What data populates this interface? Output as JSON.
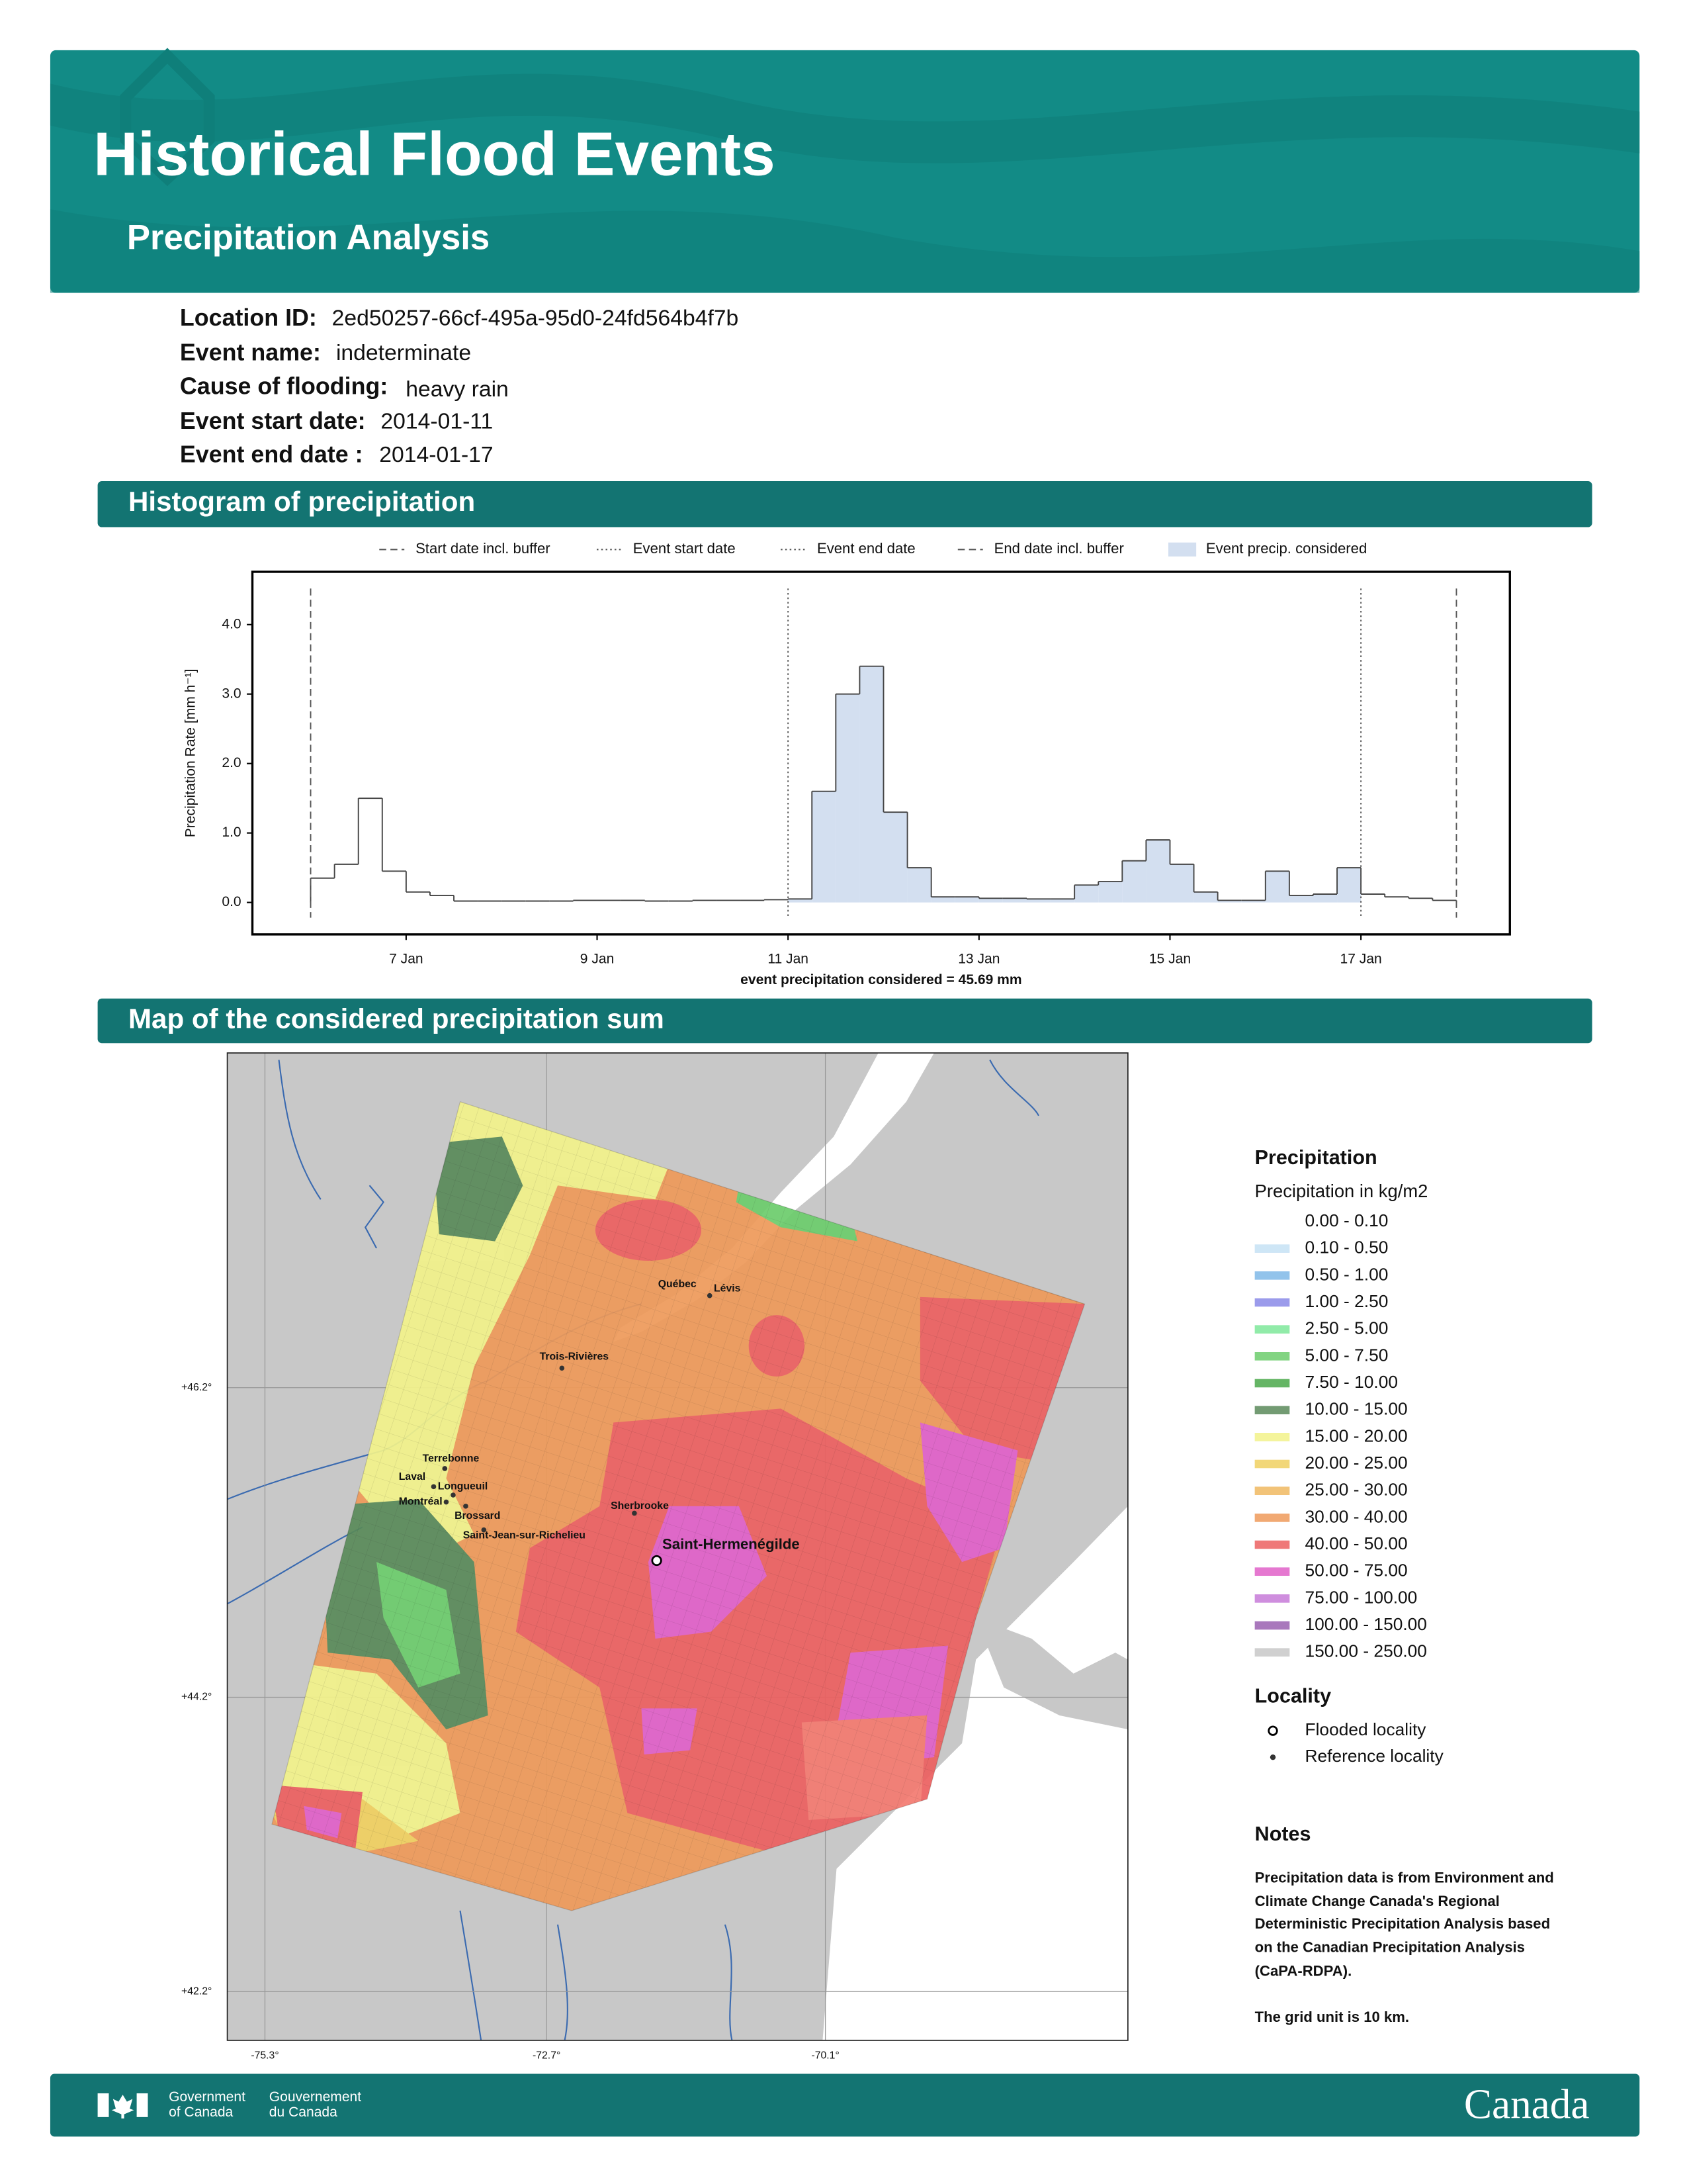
{
  "header": {
    "title": "Historical Flood Events",
    "subtitle": "Precipitation Analysis"
  },
  "fields": [
    {
      "label": "Location ID:",
      "value": "2ed50257-66cf-495a-95d0-24fd564b4f7b"
    },
    {
      "label": "Event name:",
      "value": "indeterminate"
    },
    {
      "label": "Cause of flooding:",
      "value": "heavy rain"
    },
    {
      "label": "Event start date:",
      "value": "2014-01-11"
    },
    {
      "label": "Event end date :",
      "value": "2014-01-17"
    }
  ],
  "histogram_section": "Histogram of precipitation",
  "chart_data": {
    "type": "histogram",
    "y_label": "Precipitation Rate [mm h⁻¹]",
    "x_label": "event precipitation considered = 45.69 mm",
    "bins": [
      6.0,
      6.25,
      6.5,
      6.75,
      7.0,
      7.25,
      7.5,
      7.75,
      8.0,
      8.25,
      8.5,
      8.75,
      9.0,
      9.25,
      9.5,
      9.75,
      10.0,
      10.25,
      10.5,
      10.75,
      11.0,
      11.25,
      11.5,
      11.75,
      12.0,
      12.25,
      12.5,
      12.75,
      13.0,
      13.25,
      13.5,
      13.75,
      14.0,
      14.25,
      14.5,
      14.75,
      15.0,
      15.25,
      15.5,
      15.75,
      16.0,
      16.25,
      16.5,
      16.75,
      17.0,
      17.25,
      17.5,
      17.75,
      18.0
    ],
    "values": [
      0.35,
      0.55,
      1.5,
      0.45,
      0.15,
      0.1,
      0.02,
      0.02,
      0.02,
      0.02,
      0.02,
      0.03,
      0.03,
      0.03,
      0.02,
      0.02,
      0.03,
      0.03,
      0.03,
      0.04,
      0.05,
      1.6,
      3.0,
      3.4,
      1.3,
      0.5,
      0.08,
      0.08,
      0.06,
      0.06,
      0.05,
      0.05,
      0.25,
      0.3,
      0.6,
      0.9,
      0.55,
      0.15,
      0.03,
      0.03,
      0.45,
      0.1,
      0.12,
      0.5,
      0.12,
      0.08,
      0.06,
      0.03
    ],
    "line_color": "#444444",
    "vlines": [
      {
        "name": "Start date incl. buffer",
        "x": 6,
        "dash": "dashed"
      },
      {
        "name": "Event start date",
        "x": 11,
        "dash": "dotted"
      },
      {
        "name": "Event end date",
        "x": 17,
        "dash": "dotted"
      },
      {
        "name": "End date incl. buffer",
        "x": 18,
        "dash": "dashed"
      }
    ],
    "area": {
      "name": "Event precip. considered",
      "color": "#d3dff0"
    },
    "xlim": [
      5.39,
      18.56
    ],
    "ylim": [
      -0.46,
      4.76
    ],
    "xticks": [
      {
        "value": 7,
        "label": "7 Jan"
      },
      {
        "value": 9,
        "label": "9 Jan"
      },
      {
        "value": 11,
        "label": "11 Jan"
      },
      {
        "value": 13,
        "label": "13 Jan"
      },
      {
        "value": 15,
        "label": "15 Jan"
      },
      {
        "value": 17,
        "label": "17 Jan"
      }
    ],
    "yticks": [
      {
        "value": 0,
        "label": "0.0"
      },
      {
        "value": 1,
        "label": "1.0"
      },
      {
        "value": 2,
        "label": "2.0"
      },
      {
        "value": 3,
        "label": "3.0"
      },
      {
        "value": 4,
        "label": "4.0"
      }
    ]
  },
  "map": {
    "title": "Map of the considered precipitation sum",
    "lat_labels": [
      "+46.2°",
      "+44.2°",
      "+42.2°"
    ],
    "lon_labels": [
      "-75.3°",
      "-72.7°",
      "-70.1°"
    ],
    "flooded": "Saint-Hermenégilde",
    "cities": [
      "Québec",
      "Lévis",
      "Trois-Rivières",
      "Terrebonne",
      "Laval",
      "Longueuil",
      "Montréal",
      "Brossard",
      "Sherbrooke",
      "Saint-Jean-sur-Richelieu"
    ]
  },
  "legend": {
    "title": "Precipitation",
    "subtitle": "Precipitation in kg/m2",
    "items": [
      {
        "label": "0.00 - 0.10",
        "color": "#ffffff"
      },
      {
        "label": "0.10 - 0.50",
        "color": "#c6e2f5"
      },
      {
        "label": "0.50 - 1.00",
        "color": "#7fb8e8"
      },
      {
        "label": "1.00 - 2.50",
        "color": "#8a8ae8"
      },
      {
        "label": "2.50 - 5.00",
        "color": "#7ee89a"
      },
      {
        "label": "5.00 - 7.50",
        "color": "#6ccc6c"
      },
      {
        "label": "7.50 - 10.00",
        "color": "#4aa84a"
      },
      {
        "label": "10.00 - 15.00",
        "color": "#5a8a5a"
      },
      {
        "label": "15.00 - 20.00",
        "color": "#f2f28a"
      },
      {
        "label": "20.00 - 25.00",
        "color": "#f0d060"
      },
      {
        "label": "25.00 - 30.00",
        "color": "#f0b860"
      },
      {
        "label": "30.00 - 40.00",
        "color": "#ee9a5a"
      },
      {
        "label": "40.00 - 50.00",
        "color": "#ec6060"
      },
      {
        "label": "50.00 - 75.00",
        "color": "#e060c8"
      },
      {
        "label": "75.00 - 100.00",
        "color": "#c77ad8"
      },
      {
        "label": "100.00 - 150.00",
        "color": "#9a60b0"
      },
      {
        "label": "150.00 - 250.00",
        "color": "#c8c8c8"
      }
    ],
    "locality_title": "Locality",
    "locality_items": [
      "Flooded locality",
      "Reference locality"
    ]
  },
  "notes": {
    "title": "Notes",
    "lines": [
      "Precipitation data is from Environment and",
      "Climate Change Canada's Regional",
      "Deterministic Precipitation Analysis based",
      "on the Canadian Precipitation Analysis",
      "(CaPA-RDPA)."
    ],
    "grid_note": "The grid unit is 10 km."
  },
  "footer": {
    "gov_en": [
      "Government",
      "of Canada"
    ],
    "gov_fr": [
      "Gouvernement",
      "du Canada"
    ],
    "wordmark": "Canada"
  }
}
